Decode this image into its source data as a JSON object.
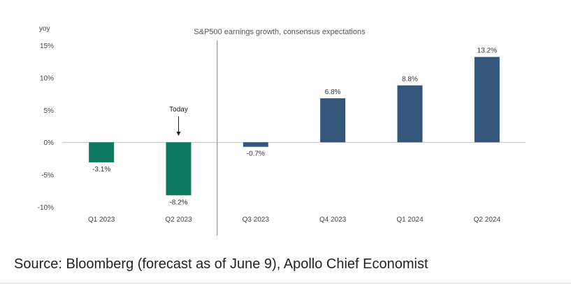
{
  "chart_data": {
    "type": "bar",
    "title": "S&P500 earnings growth, consensus expectations",
    "ylabel": "yoy",
    "xlabel": "",
    "categories": [
      "Q1 2023",
      "Q2 2023",
      "Q3 2023",
      "Q4 2023",
      "Q1 2024",
      "Q2 2024"
    ],
    "values": [
      -3.1,
      -8.2,
      -0.7,
      6.8,
      8.8,
      13.2
    ],
    "value_labels": [
      "-3.1%",
      "-8.2%",
      "-0.7%",
      "6.8%",
      "8.8%",
      "13.2%"
    ],
    "ylim": [
      -10,
      15
    ],
    "yticks": [
      15,
      10,
      5,
      0,
      -5,
      -10
    ],
    "ytick_labels": [
      "15%",
      "10%",
      "5%",
      "0%",
      "-5%",
      "-10%"
    ],
    "bar_colors": [
      "#0d7a5f",
      "#0d7a5f",
      "#33567a",
      "#33567a",
      "#33567a",
      "#33567a"
    ],
    "divider_after_category": "Q2 2023",
    "annotation": {
      "text": "Today",
      "category": "Q2 2023"
    },
    "grid": false
  },
  "source": "Source: Bloomberg (forecast as of June 9), Apollo Chief Economist",
  "colors": {
    "actual": "#0d7a5f",
    "forecast": "#33567a",
    "baseline": "#bfbfbf",
    "divider": "#a6a6a6"
  }
}
